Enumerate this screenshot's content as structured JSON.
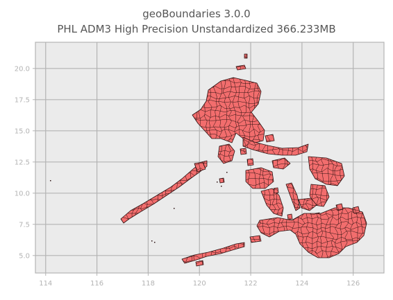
{
  "title_line1": "geoBoundaries 3.0.0",
  "title_line2": "PHL ADM3 High Precision Unstandardized 366.233MB",
  "chart_data": {
    "type": "map",
    "xticks": [
      114,
      116,
      118,
      120,
      122,
      124,
      126
    ],
    "xtick_labels": [
      "114",
      "116",
      "118",
      "120",
      "122",
      "124",
      "126"
    ],
    "yticks": [
      5.0,
      7.5,
      10.0,
      12.5,
      15.0,
      17.5,
      20.0
    ],
    "ytick_labels": [
      "5.0",
      "7.5",
      "10.0",
      "12.5",
      "15.0",
      "17.5",
      "20.0"
    ],
    "xlim": [
      113.6,
      127.2
    ],
    "ylim": [
      3.6,
      22.1
    ],
    "grid": true,
    "fill_color": "#f26d6d",
    "edge_color": "#2a1010",
    "background_color": "#ebebeb"
  }
}
